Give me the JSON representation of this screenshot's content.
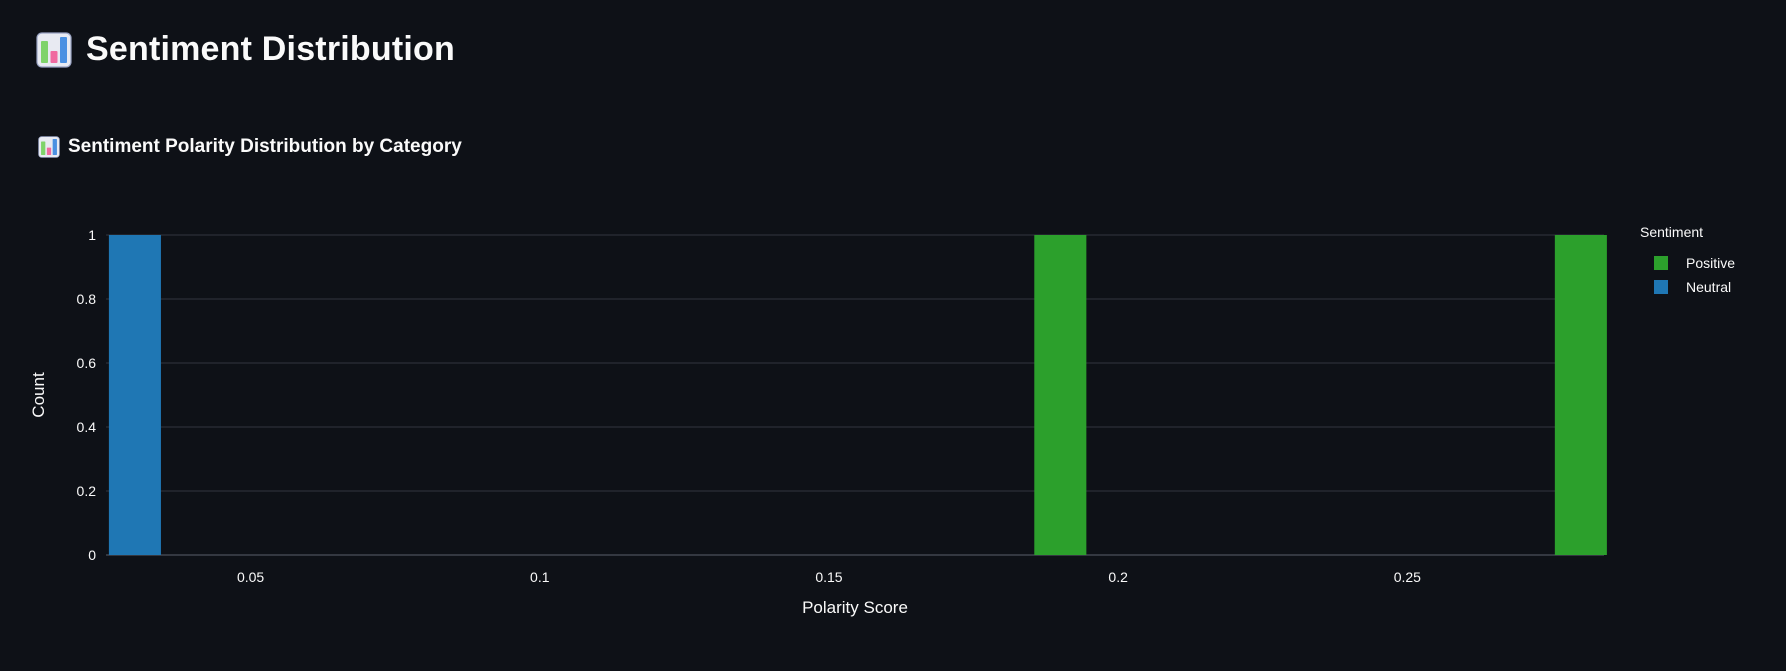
{
  "page": {
    "title": "Sentiment Distribution",
    "title_icon": "bar-chart-emoji-icon"
  },
  "section": {
    "subtitle": "Sentiment Polarity Distribution by Category",
    "subtitle_icon": "bar-chart-emoji-icon"
  },
  "chart_data": {
    "type": "bar",
    "xlabel": "Polarity Score",
    "ylabel": "Count",
    "xlim": [
      0.025,
      0.284
    ],
    "ylim": [
      0,
      1
    ],
    "x_ticks": [
      "0.05",
      "0.1",
      "0.15",
      "0.2",
      "0.25"
    ],
    "y_ticks": [
      "0",
      "0.2",
      "0.4",
      "0.6",
      "0.8",
      "1"
    ],
    "grid": true,
    "legend": {
      "title": "Sentiment",
      "placement": "top-right"
    },
    "bin_width": 0.009,
    "series": [
      {
        "name": "Positive",
        "color": "#2ca02c",
        "bins": [
          {
            "x": 0.19,
            "count": 1
          },
          {
            "x": 0.28,
            "count": 1
          }
        ]
      },
      {
        "name": "Neutral",
        "color": "#1f77b4",
        "bins": [
          {
            "x": 0.03,
            "count": 1
          }
        ]
      }
    ]
  },
  "colors": {
    "background": "#0e1117",
    "text": "#fafafa",
    "grid": "#31353f"
  }
}
